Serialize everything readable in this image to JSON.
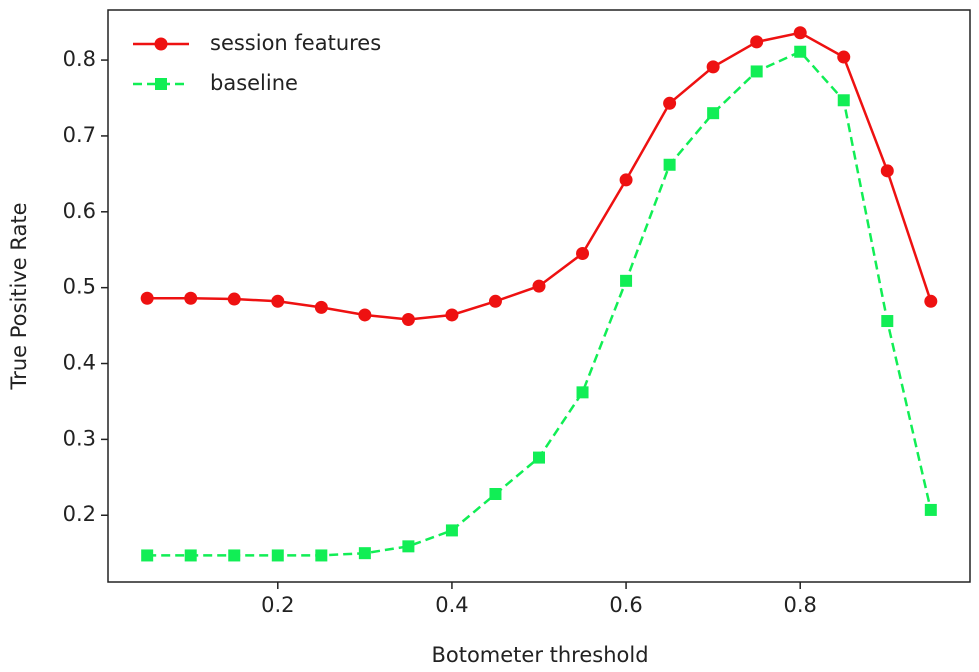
{
  "chart_data": {
    "type": "line",
    "x": [
      0.05,
      0.1,
      0.15,
      0.2,
      0.25,
      0.3,
      0.35,
      0.4,
      0.45,
      0.5,
      0.55,
      0.6,
      0.65,
      0.7,
      0.75,
      0.8,
      0.85,
      0.9,
      0.95
    ],
    "series": [
      {
        "name": "session features",
        "color": "#ee1111",
        "marker": "circle",
        "linestyle": "solid",
        "values": [
          0.486,
          0.486,
          0.485,
          0.482,
          0.474,
          0.464,
          0.458,
          0.464,
          0.482,
          0.502,
          0.545,
          0.642,
          0.743,
          0.791,
          0.824,
          0.836,
          0.804,
          0.654,
          0.482
        ]
      },
      {
        "name": "baseline",
        "color": "#11ee55",
        "marker": "square",
        "linestyle": "dashed",
        "values": [
          0.147,
          0.147,
          0.147,
          0.147,
          0.147,
          0.15,
          0.159,
          0.18,
          0.228,
          0.276,
          0.362,
          0.509,
          0.662,
          0.73,
          0.785,
          0.811,
          0.747,
          0.456,
          0.207
        ]
      }
    ],
    "x_label": "Botometer threshold",
    "y_label": "True Positive Rate",
    "xlim": [
      0.005,
      0.995
    ],
    "xticks": [
      0.2,
      0.4,
      0.6,
      0.8
    ],
    "ylim": [
      0.112,
      0.866
    ],
    "yticks": [
      0.2,
      0.3,
      0.4,
      0.5,
      0.6,
      0.7,
      0.8
    ],
    "grid": false,
    "legend": "upper left"
  }
}
